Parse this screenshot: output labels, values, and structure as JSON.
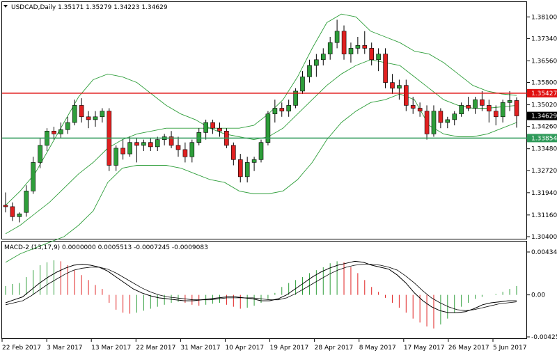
{
  "window": {
    "symbol_info": "USDCAD,Daily  1.35171  1.35279  1.34223  1.34629",
    "menu_icon": "triangle-down-icon"
  },
  "main_panel": {
    "price_axis": [
      "1.38100",
      "1.37340",
      "1.36560",
      "1.35800",
      "1.35020",
      "1.34260",
      "1.33480",
      "1.32720",
      "1.31940",
      "1.31160",
      "1.30400"
    ],
    "resistance_tag": "1.35427",
    "current_tag": "1.34629",
    "support_tag": "1.33854",
    "colors": {
      "bull": "#2e9e3a",
      "bear": "#e02020",
      "bands": "#2e9e3a",
      "resistance": "#e01010",
      "support": "#2f9a5a"
    }
  },
  "macd_panel": {
    "label": "MACD-2 (13,17,9)  0.0000000  0.0005513  -0.0007245  -0.0009083",
    "axis": [
      "0.0043419",
      "0.00",
      "-0.0042545"
    ]
  },
  "time_axis": [
    "22 Feb 2017",
    "3 Mar 2017",
    "13 Mar 2017",
    "22 Mar 2017",
    "31 Mar 2017",
    "10 Apr 2017",
    "19 Apr 2017",
    "28 Apr 2017",
    "8 May 2017",
    "17 May 2017",
    "26 May 2017",
    "5 Jun 2017"
  ],
  "chart_data": {
    "type": "candlestick",
    "symbol": "USDCAD",
    "timeframe": "Daily",
    "ohlc": [
      [
        1.315,
        1.3195,
        1.3125,
        1.3145
      ],
      [
        1.3145,
        1.316,
        1.3095,
        1.311
      ],
      [
        1.311,
        1.3125,
        1.309,
        1.312
      ],
      [
        1.3125,
        1.322,
        1.311,
        1.32
      ],
      [
        1.32,
        1.332,
        1.319,
        1.33
      ],
      [
        1.33,
        1.3385,
        1.328,
        1.336
      ],
      [
        1.336,
        1.342,
        1.334,
        1.341
      ],
      [
        1.341,
        1.3425,
        1.338,
        1.34
      ],
      [
        1.34,
        1.344,
        1.3385,
        1.3415
      ],
      [
        1.3415,
        1.346,
        1.34,
        1.344
      ],
      [
        1.344,
        1.352,
        1.343,
        1.35
      ],
      [
        1.35,
        1.3525,
        1.344,
        1.346
      ],
      [
        1.346,
        1.348,
        1.342,
        1.345
      ],
      [
        1.345,
        1.348,
        1.3425,
        1.346
      ],
      [
        1.346,
        1.349,
        1.344,
        1.348
      ],
      [
        1.348,
        1.349,
        1.327,
        1.329
      ],
      [
        1.329,
        1.336,
        1.327,
        1.335
      ],
      [
        1.335,
        1.338,
        1.331,
        1.333
      ],
      [
        1.333,
        1.339,
        1.332,
        1.337
      ],
      [
        1.337,
        1.3385,
        1.33,
        1.336
      ],
      [
        1.336,
        1.338,
        1.334,
        1.337
      ],
      [
        1.337,
        1.3385,
        1.334,
        1.3355
      ],
      [
        1.3355,
        1.339,
        1.334,
        1.338
      ],
      [
        1.338,
        1.34,
        1.336,
        1.339
      ],
      [
        1.339,
        1.341,
        1.335,
        1.336
      ],
      [
        1.336,
        1.339,
        1.332,
        1.3345
      ],
      [
        1.3345,
        1.337,
        1.33,
        1.332
      ],
      [
        1.332,
        1.338,
        1.33,
        1.337
      ],
      [
        1.337,
        1.342,
        1.336,
        1.3405
      ],
      [
        1.3405,
        1.345,
        1.338,
        1.344
      ],
      [
        1.344,
        1.345,
        1.34,
        1.342
      ],
      [
        1.342,
        1.344,
        1.339,
        1.341
      ],
      [
        1.341,
        1.342,
        1.335,
        1.336
      ],
      [
        1.336,
        1.337,
        1.329,
        1.331
      ],
      [
        1.331,
        1.333,
        1.323,
        1.325
      ],
      [
        1.325,
        1.332,
        1.323,
        1.33
      ],
      [
        1.33,
        1.332,
        1.327,
        1.331
      ],
      [
        1.331,
        1.338,
        1.33,
        1.337
      ],
      [
        1.337,
        1.348,
        1.336,
        1.347
      ],
      [
        1.347,
        1.352,
        1.344,
        1.349
      ],
      [
        1.349,
        1.351,
        1.346,
        1.348
      ],
      [
        1.348,
        1.352,
        1.346,
        1.35
      ],
      [
        1.35,
        1.356,
        1.349,
        1.355
      ],
      [
        1.355,
        1.362,
        1.354,
        1.36
      ],
      [
        1.36,
        1.366,
        1.358,
        1.364
      ],
      [
        1.364,
        1.368,
        1.36,
        1.366
      ],
      [
        1.366,
        1.37,
        1.364,
        1.368
      ],
      [
        1.368,
        1.374,
        1.366,
        1.372
      ],
      [
        1.372,
        1.38,
        1.37,
        1.376
      ],
      [
        1.376,
        1.378,
        1.366,
        1.368
      ],
      [
        1.368,
        1.372,
        1.365,
        1.37
      ],
      [
        1.37,
        1.374,
        1.368,
        1.371
      ],
      [
        1.371,
        1.376,
        1.368,
        1.37
      ],
      [
        1.37,
        1.372,
        1.364,
        1.366
      ],
      [
        1.366,
        1.37,
        1.362,
        1.368
      ],
      [
        1.368,
        1.37,
        1.356,
        1.358
      ],
      [
        1.358,
        1.361,
        1.354,
        1.356
      ],
      [
        1.356,
        1.359,
        1.352,
        1.357
      ],
      [
        1.357,
        1.359,
        1.348,
        1.35
      ],
      [
        1.35,
        1.353,
        1.347,
        1.349
      ],
      [
        1.349,
        1.351,
        1.346,
        1.348
      ],
      [
        1.348,
        1.35,
        1.338,
        1.34
      ],
      [
        1.34,
        1.35,
        1.339,
        1.348
      ],
      [
        1.348,
        1.349,
        1.342,
        1.344
      ],
      [
        1.344,
        1.346,
        1.342,
        1.345
      ],
      [
        1.345,
        1.348,
        1.343,
        1.347
      ],
      [
        1.347,
        1.351,
        1.346,
        1.35
      ],
      [
        1.35,
        1.353,
        1.348,
        1.349
      ],
      [
        1.349,
        1.353,
        1.347,
        1.352
      ],
      [
        1.352,
        1.355,
        1.348,
        1.35
      ],
      [
        1.35,
        1.352,
        1.344,
        1.348
      ],
      [
        1.348,
        1.35,
        1.343,
        1.346
      ],
      [
        1.346,
        1.352,
        1.344,
        1.351
      ],
      [
        1.351,
        1.355,
        1.348,
        1.3517
      ],
      [
        1.3517,
        1.3528,
        1.3422,
        1.3463
      ]
    ],
    "bollinger_upper": [
      1.315,
      1.32,
      1.326,
      1.335,
      1.344,
      1.353,
      1.359,
      1.361,
      1.36,
      1.358,
      1.354,
      1.35,
      1.347,
      1.345,
      1.342,
      1.342,
      1.342,
      1.343,
      1.347,
      1.352,
      1.36,
      1.37,
      1.379,
      1.382,
      1.381,
      1.376,
      1.374,
      1.372,
      1.369,
      1.368,
      1.365,
      1.361,
      1.357,
      1.355,
      1.354,
      1.3535
    ],
    "bollinger_middle": [
      1.305,
      1.308,
      1.312,
      1.316,
      1.321,
      1.326,
      1.33,
      1.335,
      1.338,
      1.34,
      1.341,
      1.342,
      1.342,
      1.342,
      1.342,
      1.34,
      1.339,
      1.338,
      1.339,
      1.342,
      1.347,
      1.352,
      1.357,
      1.361,
      1.364,
      1.366,
      1.365,
      1.364,
      1.36,
      1.356,
      1.352,
      1.35,
      1.349,
      1.349,
      1.3495,
      1.35
    ],
    "bollinger_lower": [
      1.295,
      1.298,
      1.3,
      1.302,
      1.304,
      1.308,
      1.313,
      1.323,
      1.328,
      1.329,
      1.329,
      1.329,
      1.328,
      1.326,
      1.324,
      1.323,
      1.32,
      1.319,
      1.319,
      1.32,
      1.324,
      1.33,
      1.338,
      1.344,
      1.348,
      1.351,
      1.352,
      1.354,
      1.352,
      1.343,
      1.34,
      1.339,
      1.339,
      1.34,
      1.342,
      1.344
    ],
    "horizontal_levels": {
      "resistance": 1.35427,
      "support": 1.33854,
      "current": 1.34629
    },
    "y_range": [
      1.304,
      1.3835
    ],
    "macd_histogram": [
      0.0009,
      0.0011,
      0.0012,
      0.0018,
      0.0025,
      0.003,
      0.0033,
      0.0035,
      0.0034,
      0.003,
      0.0025,
      0.002,
      0.0015,
      0.001,
      0.0006,
      -0.0008,
      -0.0015,
      -0.0018,
      -0.0019,
      -0.0018,
      -0.0016,
      -0.0014,
      -0.0012,
      -0.001,
      -0.0008,
      -0.0007,
      -0.0008,
      -0.001,
      -0.0011,
      -0.001,
      -0.0009,
      -0.0008,
      -0.001,
      -0.0012,
      -0.0014,
      -0.0013,
      -0.0011,
      -0.0008,
      -0.0004,
      0.0002,
      0.0008,
      0.0012,
      0.0015,
      0.0018,
      0.0022,
      0.0025,
      0.0028,
      0.0032,
      0.0034,
      0.0033,
      0.0028,
      0.0022,
      0.0015,
      0.0008,
      0.0003,
      -0.0003,
      -0.0008,
      -0.0013,
      -0.0018,
      -0.0024,
      -0.0028,
      -0.0032,
      -0.0034,
      -0.003,
      -0.0024,
      -0.0018,
      -0.0012,
      -0.0008,
      -0.0004,
      -0.0002,
      0.0,
      0.0001,
      0.0003,
      0.0006,
      0.0009
    ],
    "macd_line": [
      -0.0008,
      -0.0005,
      -0.0002,
      0.0005,
      0.0012,
      0.0018,
      0.0023,
      0.0027,
      0.003,
      0.0031,
      0.003,
      0.0028,
      0.0024,
      0.0018,
      0.0012,
      0.0006,
      0.0002,
      -0.0001,
      -0.0003,
      -0.0004,
      -0.0005,
      -0.0006,
      -0.0006,
      -0.0005,
      -0.0004,
      -0.0003,
      -0.0002,
      -0.0002,
      -0.0003,
      -0.0004,
      -0.0006,
      -0.0006,
      -0.0004,
      0.0,
      0.0006,
      0.0012,
      0.0018,
      0.0023,
      0.0027,
      0.003,
      0.0032,
      0.0034,
      0.0033,
      0.003,
      0.0028,
      0.0026,
      0.002,
      0.0012,
      0.0002,
      -0.0006,
      -0.0012,
      -0.0016,
      -0.0018,
      -0.0018,
      -0.0017,
      -0.0014,
      -0.001,
      -0.0008,
      -0.0007,
      -0.0006,
      -0.0006
    ],
    "signal_line": [
      -0.001,
      -0.0008,
      -0.0006,
      -0.0001,
      0.0005,
      0.0011,
      0.0016,
      0.0021,
      0.0025,
      0.0027,
      0.0028,
      0.0028,
      0.0026,
      0.0022,
      0.0017,
      0.0012,
      0.0007,
      0.0003,
      0.0,
      -0.0002,
      -0.0003,
      -0.0004,
      -0.0005,
      -0.0005,
      -0.0005,
      -0.0004,
      -0.0003,
      -0.0003,
      -0.0003,
      -0.0003,
      -0.0004,
      -0.0005,
      -0.0005,
      -0.0003,
      0.0001,
      0.0006,
      0.0011,
      0.0016,
      0.0021,
      0.0025,
      0.0028,
      0.003,
      0.0031,
      0.0031,
      0.003,
      0.0028,
      0.0025,
      0.0019,
      0.0012,
      0.0004,
      -0.0003,
      -0.0008,
      -0.0012,
      -0.0015,
      -0.0016,
      -0.0015,
      -0.0013,
      -0.0011,
      -0.0009,
      -0.0008,
      -0.0007
    ],
    "macd_range": [
      -0.0042545,
      0.0043419
    ]
  }
}
